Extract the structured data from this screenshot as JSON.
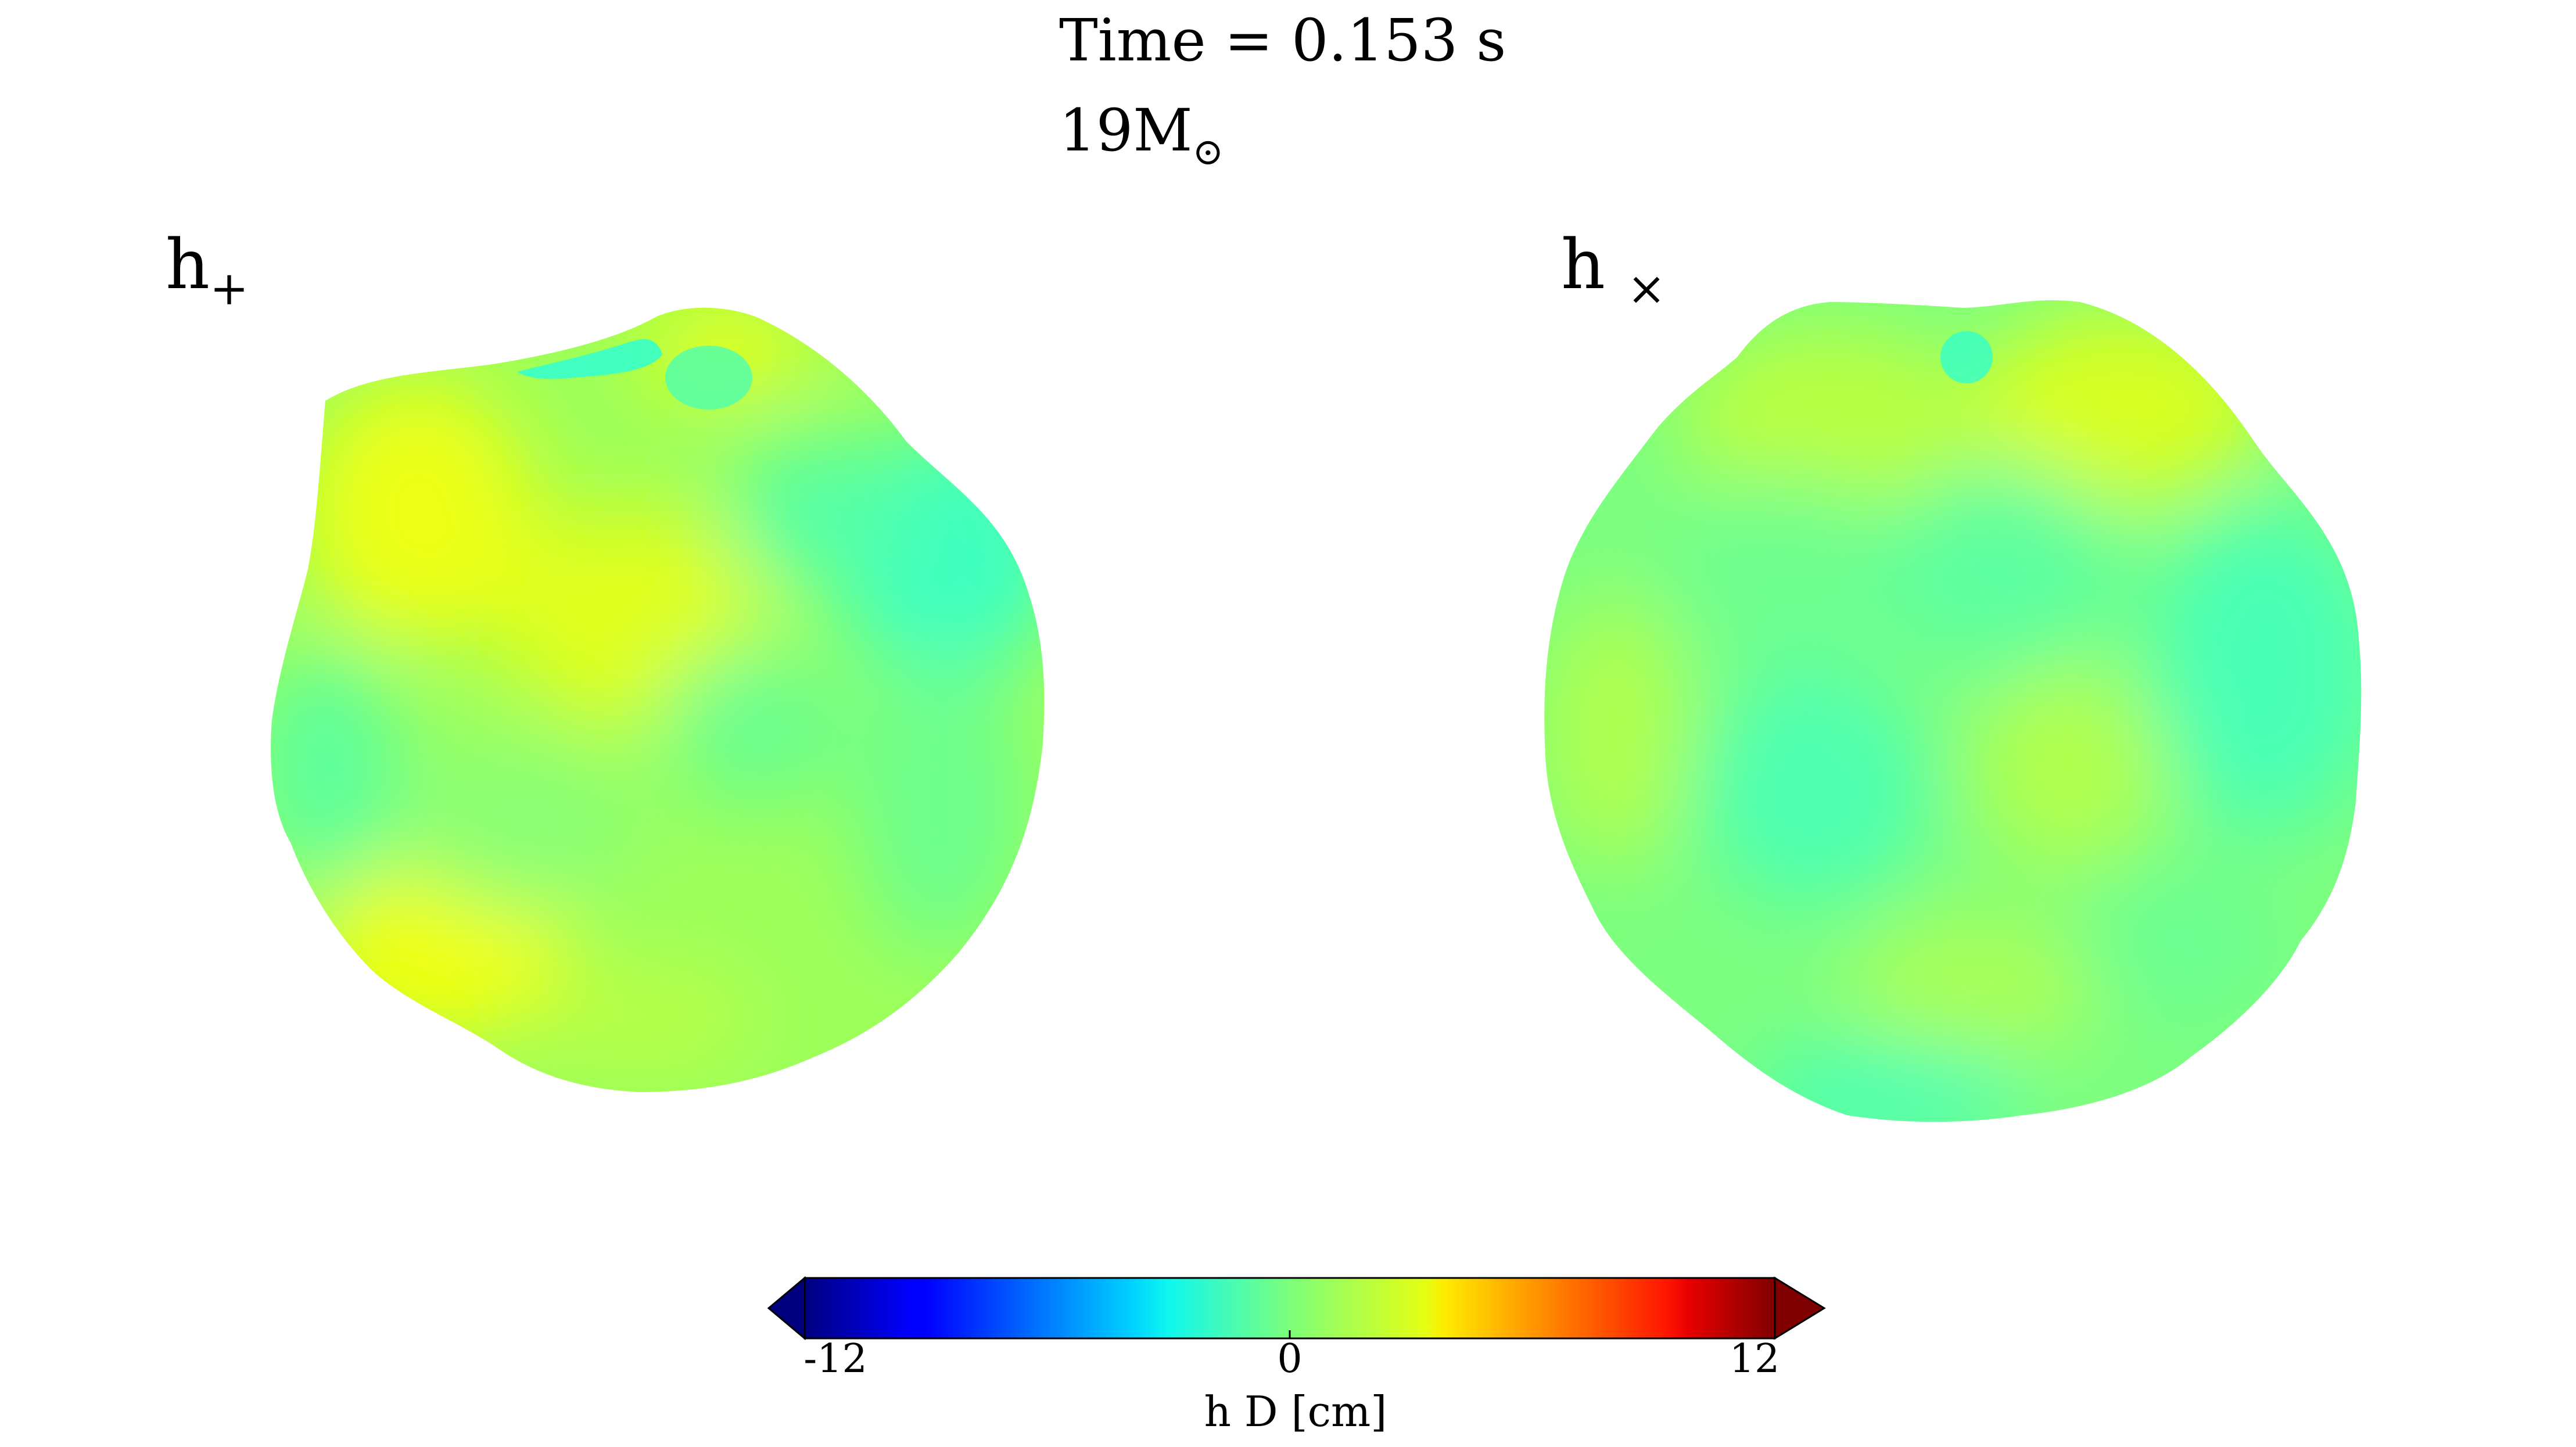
{
  "title": "Time = 0.153 s",
  "mass": {
    "value": "19M",
    "symbol": "⊙"
  },
  "panels": [
    {
      "label_main": "h",
      "label_sub": "+"
    },
    {
      "label_main": "h",
      "label_sub": "×"
    }
  ],
  "colorbar": {
    "colormap": "jet",
    "extend": "both",
    "min": -12,
    "max": 12,
    "ticks": [
      "-12",
      "0",
      "12"
    ],
    "label": "h D [cm]"
  }
}
